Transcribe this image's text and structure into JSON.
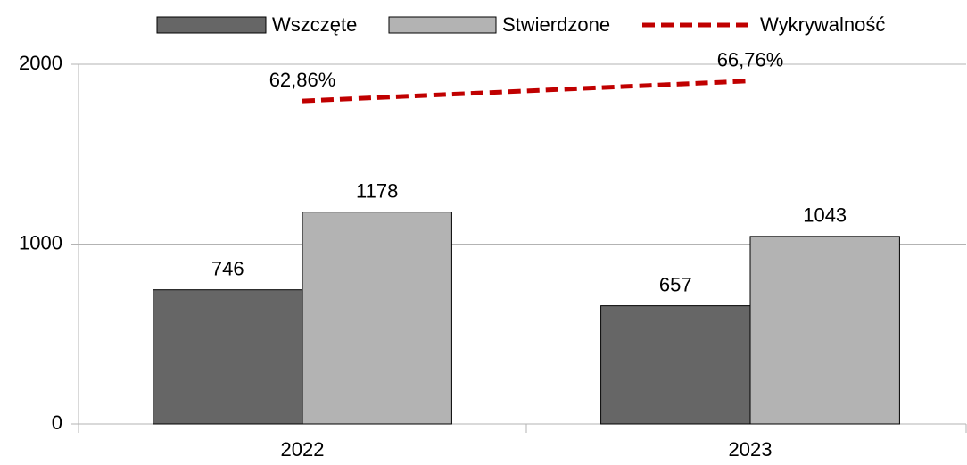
{
  "chart_data": {
    "type": "bar",
    "categories": [
      "2022",
      "2023"
    ],
    "series": [
      {
        "name": "Wszczęte",
        "color": "#666666",
        "values": [
          746,
          657
        ]
      },
      {
        "name": "Stwierdzone",
        "color": "#b3b3b3",
        "values": [
          1178,
          1043
        ]
      },
      {
        "name": "Wykrywalność",
        "type": "line",
        "axis": "y2",
        "color": "#c00000",
        "dashed": true,
        "values": [
          62.86,
          66.76
        ],
        "value_labels": [
          "62,86%",
          "66,76%"
        ]
      }
    ],
    "ylim": [
      0,
      2000
    ],
    "yticks": [
      0,
      1000,
      2000
    ],
    "y2lim": [
      0,
      70
    ],
    "grid": true,
    "legend": "top"
  }
}
